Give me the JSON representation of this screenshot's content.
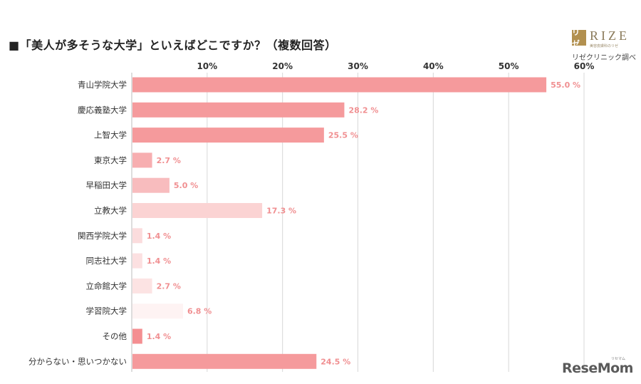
{
  "title": "■「美人が多そうな大学」といえばどこですか？（複数回答）",
  "logo": {
    "mark": "リゼ",
    "word": "RIZE",
    "sub": "美容皮膚科のリゼ",
    "source": "リゼクリニック調べ"
  },
  "brand": {
    "name": "ReseMom",
    "ruby": "リセマム"
  },
  "chart_data": {
    "type": "bar",
    "orientation": "horizontal",
    "categories": [
      "青山学院大学",
      "慶応義塾大学",
      "上智大学",
      "東京大学",
      "早稲田大学",
      "立教大学",
      "関西学院大学",
      "同志社大学",
      "立命館大学",
      "学習院大学",
      "その他",
      "分からない・思いつかない"
    ],
    "values": [
      55.0,
      28.2,
      25.5,
      2.7,
      5.0,
      17.3,
      1.4,
      1.4,
      2.7,
      6.8,
      1.4,
      24.5
    ],
    "value_labels": [
      "55.0 %",
      "28.2 %",
      "25.5 %",
      "2.7 %",
      "5.0 %",
      "17.3 %",
      "1.4 %",
      "1.4 %",
      "2.7 %",
      "6.8 %",
      "1.4 %",
      "24.5 %"
    ],
    "bar_colors": [
      "#f59a9c",
      "#f59a9c",
      "#f59a9c",
      "#f7aeb0",
      "#f8bcbe",
      "#fbd3d3",
      "#fbdcdd",
      "#fce0e1",
      "#fce3e3",
      "#fef3f3",
      "#f48f92",
      "#f59a9c"
    ],
    "xlim": [
      0,
      60
    ],
    "xticks": [
      10,
      20,
      30,
      40,
      50,
      60
    ],
    "xtick_labels": [
      "10%",
      "20%",
      "30%",
      "40%",
      "50%",
      "60%"
    ],
    "grid": true,
    "label_color": "#f08f91",
    "grid_color": "#d8d8d8"
  }
}
